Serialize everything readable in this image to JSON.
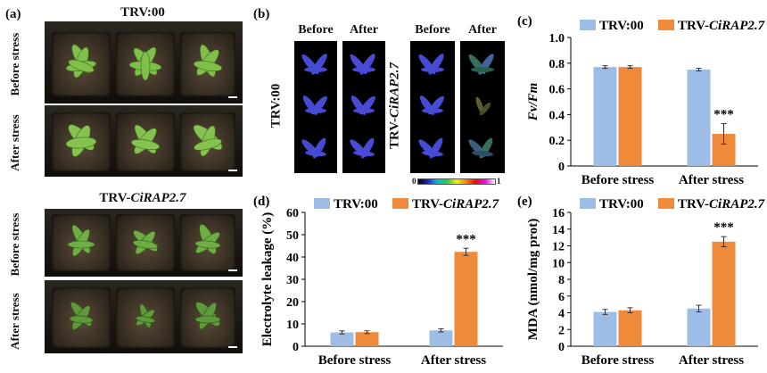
{
  "panel_a": {
    "label": "(a)",
    "group1_title": "TRV:00",
    "group2_title_prefix": "TRV-",
    "group2_title_gene": "CiRAP2.7",
    "row_before": "Before stress",
    "row_after": "After stress"
  },
  "panel_b": {
    "label": "(b)",
    "col_before": "Before",
    "col_after": "After",
    "row_trv00": "TRV:00",
    "row_trv_prefix": "TRV-",
    "row_trv_gene": "CiRAP2.7",
    "colorbar_min": "0",
    "colorbar_max": "1"
  },
  "colors": {
    "trv00": "#9dbde6",
    "trvgene": "#ee8a3a",
    "error": "#333333"
  },
  "chart_data": [
    {
      "id": "c",
      "label": "(c)",
      "type": "bar",
      "ylabel": "Fv/Fm",
      "ylim": [
        0,
        1.0
      ],
      "yticks": [
        "0",
        "0.2",
        "0.4",
        "0.6",
        "0.8",
        "1.0"
      ],
      "ytick_values": [
        0,
        0.2,
        0.4,
        0.6,
        0.8,
        1.0
      ],
      "categories": [
        "Before stress",
        "After stress"
      ],
      "legend": [
        "TRV:00",
        "TRV-CiRAP2.7"
      ],
      "legend_prefix": "TRV-",
      "legend_gene": "CiRAP2.7",
      "series": [
        {
          "name": "TRV:00",
          "values": [
            0.77,
            0.75
          ],
          "errors": [
            0.01,
            0.01
          ]
        },
        {
          "name": "TRV-CiRAP2.7",
          "values": [
            0.77,
            0.25
          ],
          "errors": [
            0.01,
            0.08
          ]
        }
      ],
      "annotations": [
        {
          "category": 1,
          "series": 1,
          "text": "***"
        }
      ]
    },
    {
      "id": "d",
      "label": "(d)",
      "type": "bar",
      "ylabel": "Electrolyte leakage (%)",
      "ylim": [
        0,
        60
      ],
      "yticks": [
        "0",
        "10",
        "20",
        "30",
        "40",
        "50",
        "60"
      ],
      "ytick_values": [
        0,
        10,
        20,
        30,
        40,
        50,
        60
      ],
      "categories": [
        "Before stress",
        "After stress"
      ],
      "legend": [
        "TRV:00",
        "TRV-CiRAP2.7"
      ],
      "legend_prefix": "TRV-",
      "legend_gene": "CiRAP2.7",
      "series": [
        {
          "name": "TRV:00",
          "values": [
            6.2,
            7.1
          ],
          "errors": [
            0.7,
            0.7
          ]
        },
        {
          "name": "TRV-CiRAP2.7",
          "values": [
            6.3,
            42.3
          ],
          "errors": [
            0.6,
            1.6
          ]
        }
      ],
      "annotations": [
        {
          "category": 1,
          "series": 1,
          "text": "***"
        }
      ]
    },
    {
      "id": "e",
      "label": "(e)",
      "type": "bar",
      "ylabel": "MDA (nmol/mg prot)",
      "ylim": [
        0,
        16
      ],
      "yticks": [
        "0",
        "2",
        "4",
        "6",
        "8",
        "10",
        "12",
        "14",
        "16"
      ],
      "ytick_values": [
        0,
        2,
        4,
        6,
        8,
        10,
        12,
        14,
        16
      ],
      "categories": [
        "Before stress",
        "After stress"
      ],
      "legend": [
        "TRV:00",
        "TRV-CiRAP2.7"
      ],
      "legend_prefix": "TRV-",
      "legend_gene": "CiRAP2.7",
      "series": [
        {
          "name": "TRV:00",
          "values": [
            4.1,
            4.5
          ],
          "errors": [
            0.3,
            0.4
          ]
        },
        {
          "name": "TRV-CiRAP2.7",
          "values": [
            4.3,
            12.5
          ],
          "errors": [
            0.3,
            0.6
          ]
        }
      ],
      "annotations": [
        {
          "category": 1,
          "series": 1,
          "text": "***"
        }
      ]
    }
  ]
}
